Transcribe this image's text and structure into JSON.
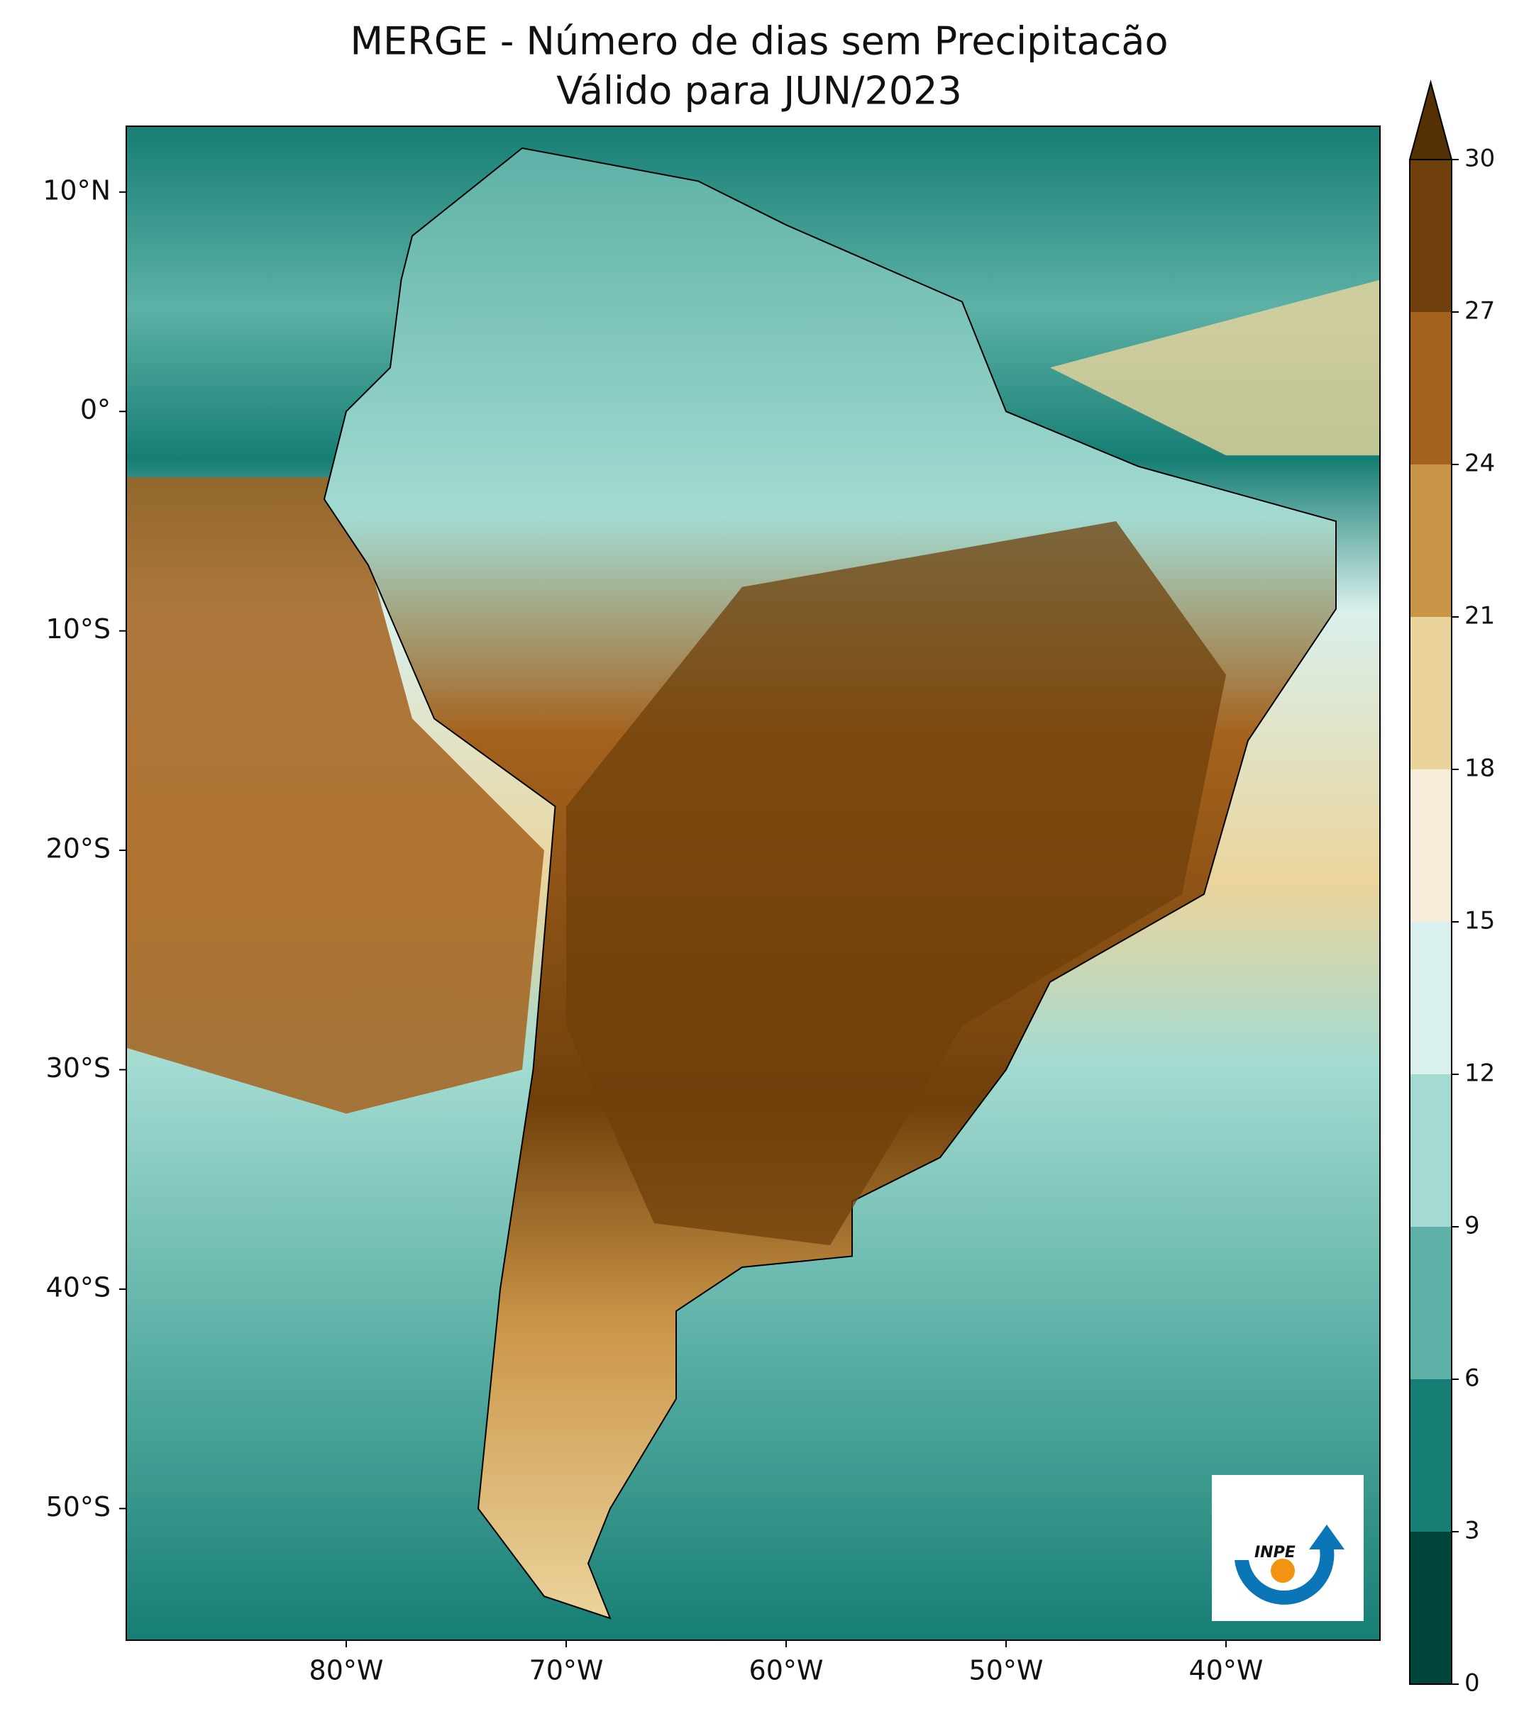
{
  "chart_data": {
    "type": "contour_map",
    "title": "MERGE - Número de dias sem Precipitacão",
    "subtitle": "Válido para JUN/2023",
    "xlim": [
      -90,
      -33
    ],
    "ylim": [
      -56,
      13
    ],
    "xticks": [
      {
        "value": -80,
        "label": "80°W"
      },
      {
        "value": -70,
        "label": "70°W"
      },
      {
        "value": -60,
        "label": "60°W"
      },
      {
        "value": -50,
        "label": "50°W"
      },
      {
        "value": -40,
        "label": "40°W"
      }
    ],
    "yticks": [
      {
        "value": 10,
        "label": "10°N"
      },
      {
        "value": 0,
        "label": "0°"
      },
      {
        "value": -10,
        "label": "10°S"
      },
      {
        "value": -20,
        "label": "20°S"
      },
      {
        "value": -30,
        "label": "30°S"
      },
      {
        "value": -40,
        "label": "40°S"
      },
      {
        "value": -50,
        "label": "50°S"
      }
    ],
    "levels": [
      0,
      3,
      6,
      9,
      12,
      15,
      18,
      21,
      24,
      27,
      30
    ],
    "colors": [
      "#00463c",
      "#167e74",
      "#5db1a6",
      "#a3dbd2",
      "#d9f0ec",
      "#f6eedb",
      "#ebd49c",
      "#cb9548",
      "#a5621d",
      "#6f400b"
    ],
    "extend_color": "#543005",
    "logo": "INPE"
  }
}
